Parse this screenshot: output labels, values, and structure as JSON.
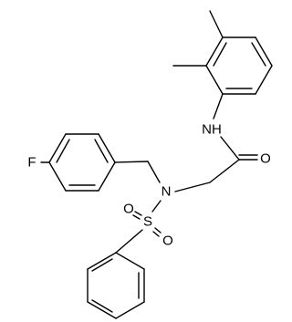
{
  "nodes": [
    {
      "label": "F"
    },
    {
      "label": "N"
    },
    {
      "label": "NH"
    },
    {
      "label": "O"
    },
    {
      "label": "S"
    },
    {
      "label": "O"
    },
    {
      "label": "O"
    }
  ]
}
